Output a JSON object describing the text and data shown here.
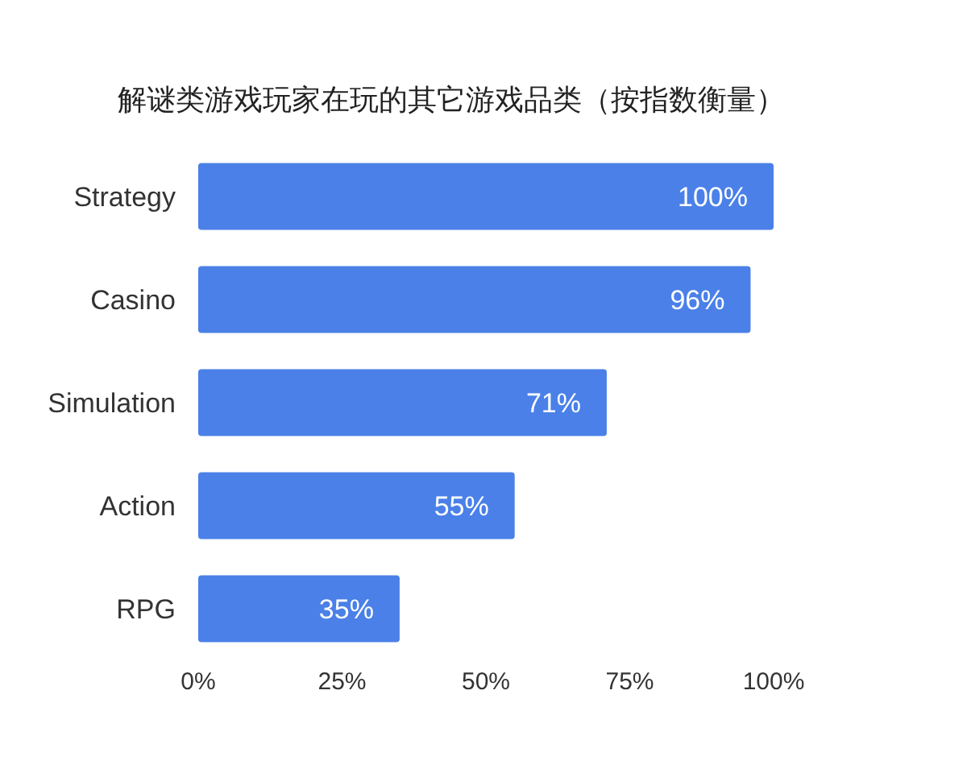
{
  "chart_data": {
    "type": "bar",
    "orientation": "horizontal",
    "title": "解谜类游戏玩家在玩的其它游戏品类（按指数衡量）",
    "categories": [
      "Strategy",
      "Casino",
      "Simulation",
      "Action",
      "RPG"
    ],
    "values": [
      100,
      96,
      71,
      55,
      35
    ],
    "value_labels": [
      "100%",
      "96%",
      "71%",
      "55%",
      "35%"
    ],
    "color": "#4a80e8",
    "xlim": [
      0,
      100
    ],
    "xticks": [
      {
        "value": 0,
        "label": "0%"
      },
      {
        "value": 25,
        "label": "25%"
      },
      {
        "value": 50,
        "label": "50%"
      },
      {
        "value": 75,
        "label": "75%"
      },
      {
        "value": 100,
        "label": "100%"
      }
    ]
  }
}
